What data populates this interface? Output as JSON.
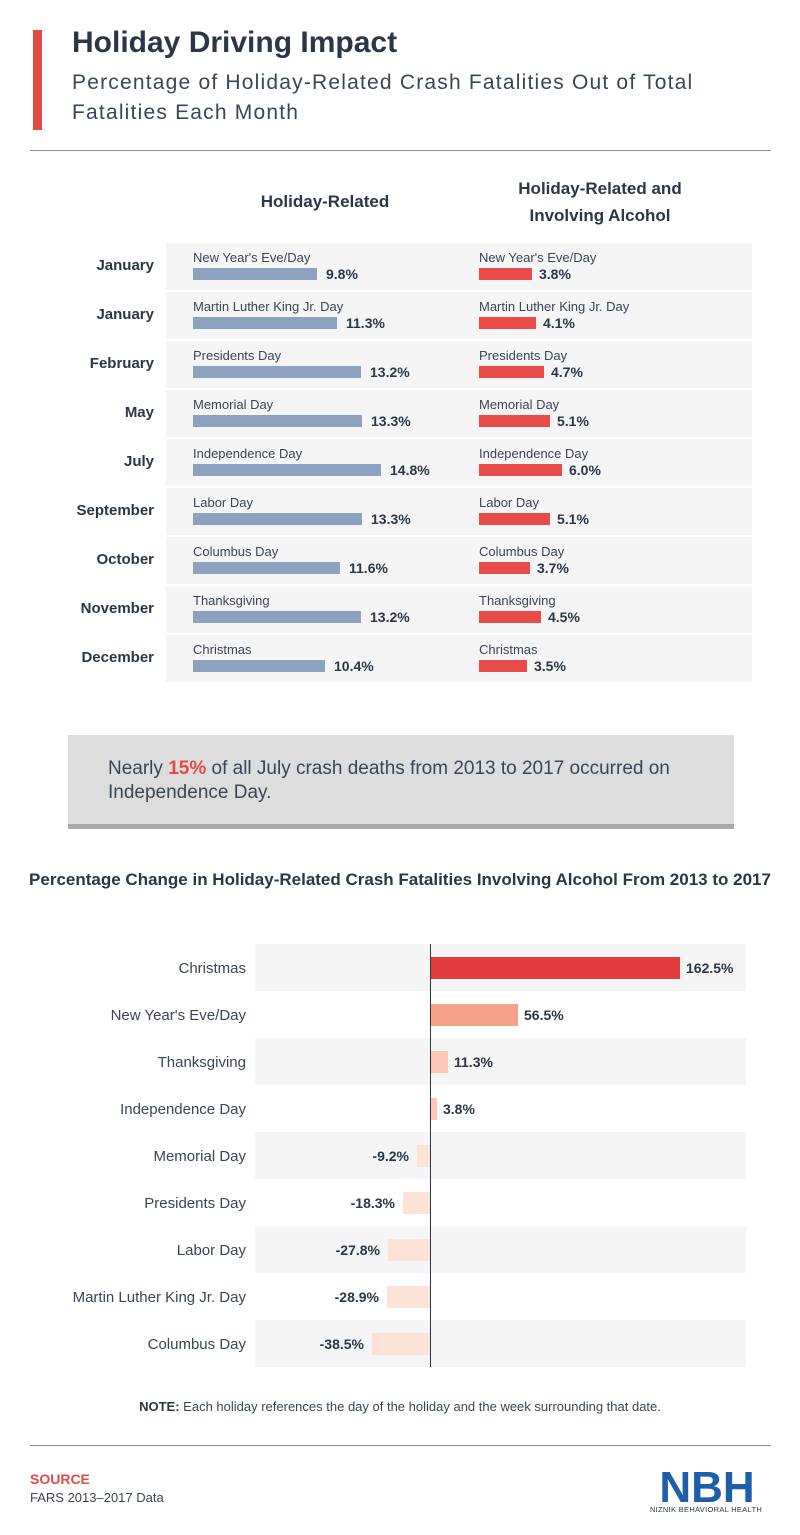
{
  "header": {
    "title": "Holiday Driving Impact",
    "subtitle": "Percentage of Holiday-Related Crash Fatalities Out of Total Fatalities Each Month"
  },
  "colors": {
    "accent": "#e24a46",
    "holiday_bar": "#8ca2bf",
    "alcohol_bar": "#e94b48",
    "change_high": "#e03c3e",
    "change_mid": "#f6a289",
    "change_low": "#fcc7b4",
    "change_neg": "#fde2d8"
  },
  "callout": {
    "pre": "Nearly ",
    "highlight": "15%",
    "post": " of all July crash deaths from 2013 to 2017 occurred on Independence Day."
  },
  "chart_data": [
    {
      "type": "bar",
      "orientation": "horizontal",
      "title": "",
      "column_headers": [
        "Holiday-Related",
        "Holiday-Related and Involving Alcohol"
      ],
      "row_labels": [
        "January",
        "January",
        "February",
        "May",
        "July",
        "September",
        "October",
        "November",
        "December"
      ],
      "categories": [
        "New Year's Eve/Day",
        "Martin Luther King Jr. Day",
        "Presidents Day",
        "Memorial Day",
        "Independence Day",
        "Labor Day",
        "Columbus Day",
        "Thanksgiving",
        "Christmas"
      ],
      "series": [
        {
          "name": "Holiday-Related",
          "values": [
            9.8,
            11.3,
            13.2,
            13.3,
            14.8,
            13.3,
            11.6,
            13.2,
            10.4
          ],
          "labels": [
            "9.8%",
            "11.3%",
            "13.2%",
            "13.3%",
            "14.8%",
            "13.3%",
            "11.6%",
            "13.2%",
            "10.4%"
          ]
        },
        {
          "name": "Holiday-Related and Involving Alcohol",
          "values": [
            3.8,
            4.1,
            4.7,
            5.1,
            6.0,
            5.1,
            3.7,
            4.5,
            3.5
          ],
          "labels": [
            "3.8%",
            "4.1%",
            "4.7%",
            "5.1%",
            "6.0%",
            "5.1%",
            "3.7%",
            "4.5%",
            "3.5%"
          ]
        }
      ]
    },
    {
      "type": "bar",
      "orientation": "horizontal",
      "title": "Percentage Change in Holiday-Related Crash Fatalities Involving Alcohol From 2013 to 2017",
      "categories": [
        "Christmas",
        "New Year's Eve/Day",
        "Thanksgiving",
        "Independence Day",
        "Memorial Day",
        "Presidents Day",
        "Labor Day",
        "Martin Luther King Jr. Day",
        "Columbus Day"
      ],
      "values": [
        162.5,
        56.5,
        11.3,
        3.8,
        -9.2,
        -18.3,
        -27.8,
        -28.9,
        -38.5
      ],
      "labels": [
        "162.5%",
        "56.5%",
        "11.3%",
        "3.8%",
        "-9.2%",
        "-18.3%",
        "-27.8%",
        "-28.9%",
        "-38.5%"
      ]
    }
  ],
  "note": {
    "label": "NOTE:",
    "text": " Each holiday references the day of the holiday and the week surrounding that date."
  },
  "source": {
    "label": "SOURCE",
    "text": "FARS 2013–2017 Data"
  },
  "logo": {
    "mark": "NBH",
    "name": "NIZNIK BEHAVIORAL HEALTH"
  }
}
